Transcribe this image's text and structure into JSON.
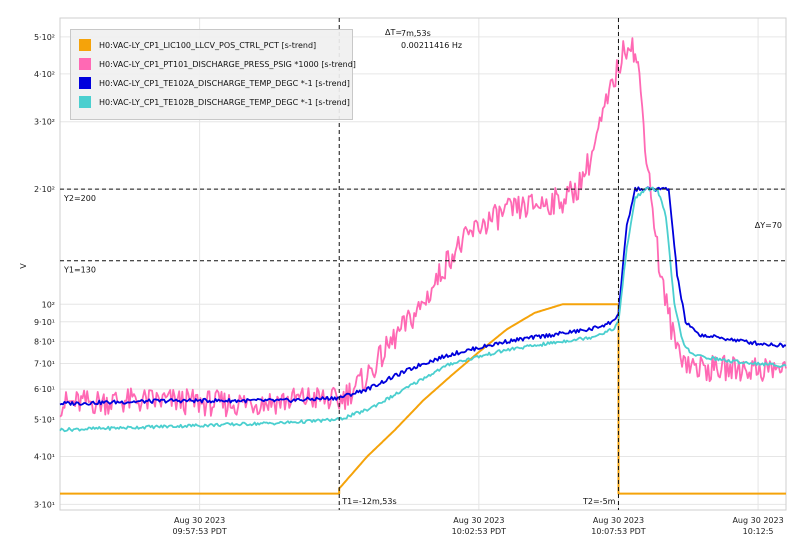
{
  "chart_data": {
    "type": "line",
    "ylabel": "V",
    "yscale": "log",
    "ylim": [
      29,
      560
    ],
    "y_ticks": [
      {
        "value": 30,
        "label": "3·10¹"
      },
      {
        "value": 40,
        "label": "4·10¹"
      },
      {
        "value": 50,
        "label": "5·10¹"
      },
      {
        "value": 60,
        "label": "6·10¹"
      },
      {
        "value": 70,
        "label": "7·10¹"
      },
      {
        "value": 80,
        "label": "8·10¹"
      },
      {
        "value": 90,
        "label": "9·10¹"
      },
      {
        "value": 100,
        "label": "10²"
      },
      {
        "value": 200,
        "label": "2·10²"
      },
      {
        "value": 300,
        "label": "3·10²"
      },
      {
        "value": 400,
        "label": "4·10²"
      },
      {
        "value": 500,
        "label": "5·10²"
      }
    ],
    "xlim": [
      -20,
      6
    ],
    "x_ticks": [
      {
        "value": -15,
        "date": "Aug 30 2023",
        "time": "09:57:53 PDT"
      },
      {
        "value": -5,
        "date": "Aug 30 2023",
        "time": "10:02:53 PDT"
      },
      {
        "value": 0,
        "date": "Aug 30 2023",
        "time": "10:07:53 PDT"
      },
      {
        "value": 5,
        "date": "Aug 30 2023",
        "time": "10:12:5"
      }
    ],
    "grid": true,
    "legend_position": "top-left",
    "series": [
      {
        "name": "H0:VAC-LY_CP1_LIC100_LLCV_POS_CTRL_PCT [s-trend]",
        "color": "#f5a30a",
        "points": [
          [
            -20,
            32
          ],
          [
            -10,
            32
          ],
          [
            -10,
            33
          ],
          [
            -9,
            40
          ],
          [
            -8,
            47
          ],
          [
            -7,
            56
          ],
          [
            -6,
            65
          ],
          [
            -5,
            75
          ],
          [
            -4,
            86
          ],
          [
            -3,
            95
          ],
          [
            -2,
            100
          ],
          [
            0,
            100
          ],
          [
            0,
            100
          ],
          [
            0,
            32
          ],
          [
            6,
            32
          ]
        ]
      },
      {
        "name": "H0:VAC-LY_CP1_PT101_DISCHARGE_PRESS_PSIG *1000 [s-trend]",
        "color": "#ff69b4",
        "points": [
          [
            -20,
            55
          ],
          [
            -18,
            56
          ],
          [
            -16,
            56
          ],
          [
            -14,
            55
          ],
          [
            -12,
            56
          ],
          [
            -11,
            57
          ],
          [
            -10,
            56
          ],
          [
            -9,
            65
          ],
          [
            -8,
            82
          ],
          [
            -7,
            100
          ],
          [
            -6,
            135
          ],
          [
            -5,
            160
          ],
          [
            -4,
            175
          ],
          [
            -3,
            182
          ],
          [
            -2,
            188
          ],
          [
            -1.5,
            200
          ],
          [
            -1,
            240
          ],
          [
            -0.5,
            320
          ],
          [
            0,
            420
          ],
          [
            0.4,
            500
          ],
          [
            0.7,
            420
          ],
          [
            1.0,
            250
          ],
          [
            1.5,
            120
          ],
          [
            2,
            80
          ],
          [
            2.5,
            70
          ],
          [
            3,
            68
          ],
          [
            4,
            68
          ],
          [
            5,
            68
          ],
          [
            6,
            68
          ]
        ]
      },
      {
        "name": "H0:VAC-LY_CP1_TE102A_DISCHARGE_TEMP_DEGC *-1 [s-trend]",
        "color": "#0000dd",
        "points": [
          [
            -20,
            55
          ],
          [
            -16,
            56
          ],
          [
            -12,
            56
          ],
          [
            -10,
            57
          ],
          [
            -9,
            60
          ],
          [
            -8,
            65
          ],
          [
            -7,
            70
          ],
          [
            -6,
            74
          ],
          [
            -5,
            77
          ],
          [
            -4,
            80
          ],
          [
            -3,
            82
          ],
          [
            -2,
            84
          ],
          [
            -1,
            86
          ],
          [
            -0.2,
            90
          ],
          [
            0,
            95
          ],
          [
            0.3,
            160
          ],
          [
            0.6,
            200
          ],
          [
            1.0,
            200
          ],
          [
            1.5,
            200
          ],
          [
            1.8,
            200
          ],
          [
            2.1,
            120
          ],
          [
            2.4,
            90
          ],
          [
            2.8,
            84
          ],
          [
            3,
            83
          ],
          [
            4,
            81
          ],
          [
            5,
            79
          ],
          [
            6,
            78
          ]
        ]
      },
      {
        "name": "H0:VAC-LY_CP1_TE102B_DISCHARGE_TEMP_DEGC *-1 [s-trend]",
        "color": "#4bcfcf",
        "points": [
          [
            -20,
            47
          ],
          [
            -16,
            48
          ],
          [
            -12,
            49
          ],
          [
            -10,
            50
          ],
          [
            -9,
            53
          ],
          [
            -8,
            58
          ],
          [
            -7,
            64
          ],
          [
            -6,
            70
          ],
          [
            -5,
            73
          ],
          [
            -4,
            76
          ],
          [
            -3,
            78
          ],
          [
            -2,
            80
          ],
          [
            -1,
            82
          ],
          [
            -0.2,
            86
          ],
          [
            0,
            90
          ],
          [
            0.3,
            140
          ],
          [
            0.6,
            190
          ],
          [
            1.0,
            200
          ],
          [
            1.4,
            200
          ],
          [
            1.7,
            170
          ],
          [
            2.0,
            100
          ],
          [
            2.3,
            80
          ],
          [
            2.6,
            74
          ],
          [
            3,
            73
          ],
          [
            4,
            71
          ],
          [
            5,
            70
          ],
          [
            6,
            69
          ]
        ]
      }
    ],
    "cursors": {
      "x1": {
        "value": -10,
        "label": "T1=-12m,53s"
      },
      "x2": {
        "value": 0,
        "label": "T2=-5m"
      },
      "delta_x_prefix": "ΔT=",
      "delta_x_value": "7m,53s",
      "delta_x_freq": "0.00211416 Hz",
      "y1": {
        "value": 130,
        "label": "Y1=130"
      },
      "y2": {
        "value": 200,
        "label": "Y2=200"
      },
      "delta_y": "ΔY=70"
    }
  }
}
